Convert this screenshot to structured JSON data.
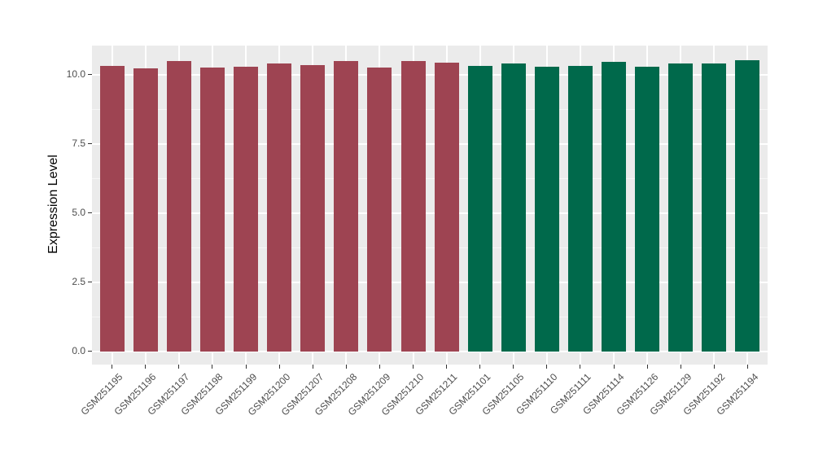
{
  "figure": {
    "background_color": "#FFFFFF",
    "panel_background_color": "#EBEBEB",
    "gridline_color": "#FFFFFF",
    "tick_mark_color": "#333333",
    "axis_text_color": "#4D4D4D",
    "axis_title_color": "#000000"
  },
  "chart_data": {
    "type": "bar",
    "title": "",
    "xlabel": "",
    "ylabel": "Expression Level",
    "legend": "none",
    "grid": "horizontal major+minor and vertical per-category white gridlines on gray panel",
    "x_label_rotation_deg": 45,
    "categories": [
      "GSM251195",
      "GSM251196",
      "GSM251197",
      "GSM251198",
      "GSM251199",
      "GSM251200",
      "GSM251207",
      "GSM251208",
      "GSM251209",
      "GSM251210",
      "GSM251211",
      "GSM251101",
      "GSM251105",
      "GSM251110",
      "GSM251111",
      "GSM251114",
      "GSM251126",
      "GSM251129",
      "GSM251192",
      "GSM251194"
    ],
    "values": [
      10.32,
      10.22,
      10.49,
      10.26,
      10.29,
      10.39,
      10.34,
      10.5,
      10.26,
      10.49,
      10.42,
      10.32,
      10.41,
      10.29,
      10.31,
      10.46,
      10.3,
      10.39,
      10.39,
      10.51
    ],
    "bar_group_index": [
      0,
      0,
      0,
      0,
      0,
      0,
      0,
      0,
      0,
      0,
      0,
      1,
      1,
      1,
      1,
      1,
      1,
      1,
      1,
      1
    ],
    "group_colors": [
      "#9E4452",
      "#00694B"
    ],
    "ytick_labels": [
      "0.0",
      "2.5",
      "5.0",
      "7.5",
      "10.0"
    ],
    "ytick_values": [
      0,
      2.5,
      5,
      7.5,
      10
    ],
    "minor_ytick_values": [
      1.25,
      3.75,
      6.25,
      8.75
    ],
    "ylim": [
      -0.48,
      11.05
    ]
  }
}
